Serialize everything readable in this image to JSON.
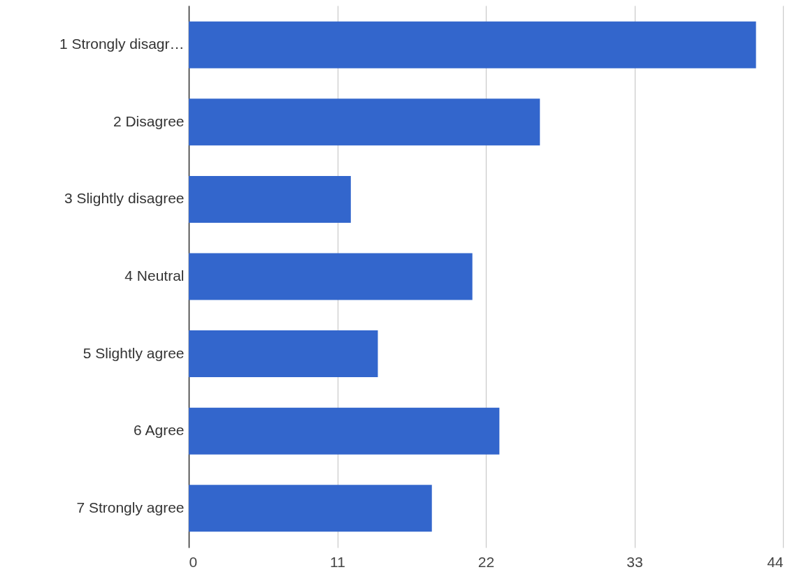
{
  "chart_data": {
    "type": "bar",
    "orientation": "horizontal",
    "categories": [
      "1 Strongly disagr…",
      "2 Disagree",
      "3 Slightly disagree",
      "4 Neutral",
      "5 Slightly agree",
      "6 Agree",
      "7 Strongly agree"
    ],
    "values": [
      42,
      26,
      12,
      21,
      14,
      23,
      18
    ],
    "color": "#3366cc",
    "xlim": [
      0,
      44
    ],
    "xticks": [
      0,
      11,
      22,
      33,
      44
    ],
    "grid": "x"
  }
}
